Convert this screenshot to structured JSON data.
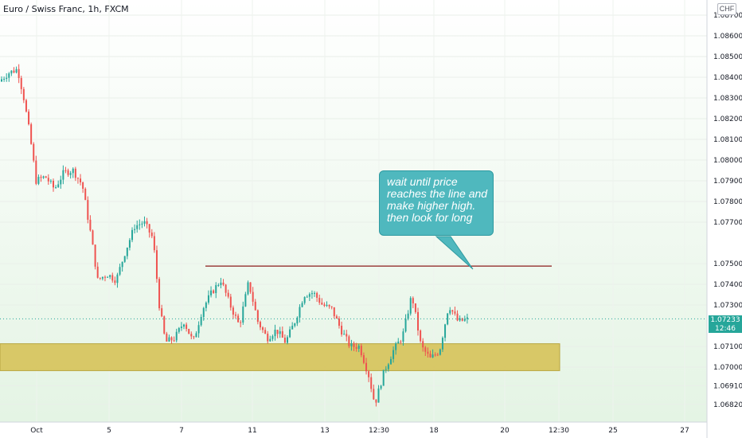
{
  "header": {
    "title": "Euro / Swiss Franc, 1h, FXCM",
    "currency_badge": "CHF"
  },
  "price_tag": {
    "price": "1.07233",
    "countdown": "12:46"
  },
  "annotation": {
    "text": "wait until price reaches the line and make higher high. then look for long"
  },
  "colors": {
    "up": "#26a69a",
    "down": "#ef5350",
    "zone": "#d6c35b",
    "line": "#8b1a1a",
    "callout": "#4fb8be"
  },
  "chart_data": {
    "type": "candlestick",
    "title": "",
    "y_axis": {
      "ticks": [
        "1.08700",
        "1.08600",
        "1.08500",
        "1.08400",
        "1.08300",
        "1.08200",
        "1.08100",
        "1.08000",
        "1.07900",
        "1.07800",
        "1.07700",
        "1.07500",
        "1.07400",
        "1.07300",
        "1.07100",
        "1.07000",
        "1.06910",
        "1.06820"
      ],
      "range": [
        1.0675,
        1.0875
      ]
    },
    "x_axis": {
      "ticks": [
        "Oct",
        "5",
        "7",
        "11",
        "13",
        "12:30",
        "18",
        "20",
        "12:30",
        "25",
        "27"
      ]
    },
    "price_path": [
      {
        "t": 0.0,
        "p": 1.0838
      },
      {
        "t": 0.015,
        "p": 1.0842
      },
      {
        "t": 0.03,
        "p": 1.0844
      },
      {
        "t": 0.04,
        "p": 1.083
      },
      {
        "t": 0.05,
        "p": 1.0812
      },
      {
        "t": 0.06,
        "p": 1.079
      },
      {
        "t": 0.075,
        "p": 1.0792
      },
      {
        "t": 0.09,
        "p": 1.0786
      },
      {
        "t": 0.105,
        "p": 1.0794
      },
      {
        "t": 0.12,
        "p": 1.0795
      },
      {
        "t": 0.135,
        "p": 1.0788
      },
      {
        "t": 0.15,
        "p": 1.0762
      },
      {
        "t": 0.16,
        "p": 1.0742
      },
      {
        "t": 0.175,
        "p": 1.0745
      },
      {
        "t": 0.19,
        "p": 1.0742
      },
      {
        "t": 0.205,
        "p": 1.0756
      },
      {
        "t": 0.22,
        "p": 1.0768
      },
      {
        "t": 0.235,
        "p": 1.077
      },
      {
        "t": 0.25,
        "p": 1.0762
      },
      {
        "t": 0.26,
        "p": 1.073
      },
      {
        "t": 0.27,
        "p": 1.0712
      },
      {
        "t": 0.285,
        "p": 1.0714
      },
      {
        "t": 0.3,
        "p": 1.0722
      },
      {
        "t": 0.315,
        "p": 1.0712
      },
      {
        "t": 0.33,
        "p": 1.0728
      },
      {
        "t": 0.345,
        "p": 1.0736
      },
      {
        "t": 0.36,
        "p": 1.0742
      },
      {
        "t": 0.375,
        "p": 1.073
      },
      {
        "t": 0.39,
        "p": 1.072
      },
      {
        "t": 0.405,
        "p": 1.0741
      },
      {
        "t": 0.42,
        "p": 1.0722
      },
      {
        "t": 0.435,
        "p": 1.0714
      },
      {
        "t": 0.45,
        "p": 1.0718
      },
      {
        "t": 0.465,
        "p": 1.0712
      },
      {
        "t": 0.48,
        "p": 1.0722
      },
      {
        "t": 0.495,
        "p": 1.0735
      },
      {
        "t": 0.51,
        "p": 1.0736
      },
      {
        "t": 0.525,
        "p": 1.073
      },
      {
        "t": 0.54,
        "p": 1.0728
      },
      {
        "t": 0.555,
        "p": 1.0718
      },
      {
        "t": 0.57,
        "p": 1.071
      },
      {
        "t": 0.585,
        "p": 1.071
      },
      {
        "t": 0.6,
        "p": 1.0696
      },
      {
        "t": 0.61,
        "p": 1.0682
      },
      {
        "t": 0.625,
        "p": 1.0698
      },
      {
        "t": 0.64,
        "p": 1.0708
      },
      {
        "t": 0.655,
        "p": 1.0715
      },
      {
        "t": 0.67,
        "p": 1.0735
      },
      {
        "t": 0.685,
        "p": 1.071
      },
      {
        "t": 0.7,
        "p": 1.0704
      },
      {
        "t": 0.715,
        "p": 1.0708
      },
      {
        "t": 0.73,
        "p": 1.073
      },
      {
        "t": 0.745,
        "p": 1.0722
      },
      {
        "t": 0.76,
        "p": 1.0723
      }
    ],
    "resistance_line": 1.07488,
    "demand_zone": [
      1.06983,
      1.07113
    ]
  }
}
